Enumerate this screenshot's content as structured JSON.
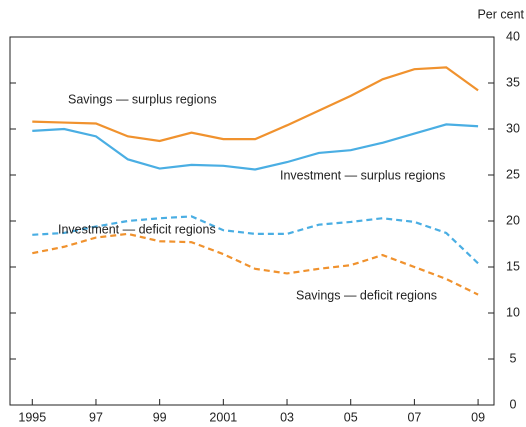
{
  "chart_data": {
    "type": "line",
    "y_unit_label": "Per cent",
    "x": [
      1995,
      1996,
      1997,
      1998,
      1999,
      2000,
      2001,
      2002,
      2003,
      2004,
      2005,
      2006,
      2007,
      2008,
      2009
    ],
    "series": [
      {
        "name": "Savings — surplus regions",
        "color": "#f0922e",
        "style": "solid",
        "values": [
          30.8,
          30.7,
          30.6,
          29.2,
          28.7,
          29.6,
          28.9,
          28.9,
          30.4,
          32.0,
          33.6,
          35.4,
          36.5,
          36.7,
          34.2
        ]
      },
      {
        "name": "Investment — surplus regions",
        "color": "#4aaee3",
        "style": "solid",
        "values": [
          29.8,
          30.0,
          29.2,
          26.7,
          25.7,
          26.1,
          26.0,
          25.6,
          26.4,
          27.4,
          27.7,
          28.5,
          29.5,
          30.5,
          30.3
        ]
      },
      {
        "name": "Investment — deficit regions",
        "color": "#4aaee3",
        "style": "dashed",
        "values": [
          18.5,
          18.7,
          19.4,
          20.0,
          20.3,
          20.5,
          19.0,
          18.6,
          18.6,
          19.6,
          19.9,
          20.3,
          19.9,
          18.7,
          15.4
        ]
      },
      {
        "name": "Savings — deficit regions",
        "color": "#f0922e",
        "style": "dashed",
        "values": [
          16.5,
          17.2,
          18.2,
          18.6,
          17.8,
          17.7,
          16.4,
          14.8,
          14.3,
          14.8,
          15.2,
          16.3,
          15.0,
          13.7,
          12.0
        ]
      }
    ],
    "xlim": [
      1994.3,
      2009.5
    ],
    "xticks": [
      1995,
      {
        "value": 1997,
        "label": "97"
      },
      {
        "value": 1999,
        "label": "99"
      },
      2001,
      {
        "value": 2003,
        "label": "03"
      },
      {
        "value": 2005,
        "label": "05"
      },
      {
        "value": 2007,
        "label": "07"
      },
      {
        "value": 2009,
        "label": "09"
      }
    ],
    "ylim": [
      0,
      40
    ],
    "yticks": [
      0,
      5,
      10,
      15,
      20,
      25,
      30,
      35,
      40
    ],
    "y_axis_side": "right",
    "grid": false
  }
}
